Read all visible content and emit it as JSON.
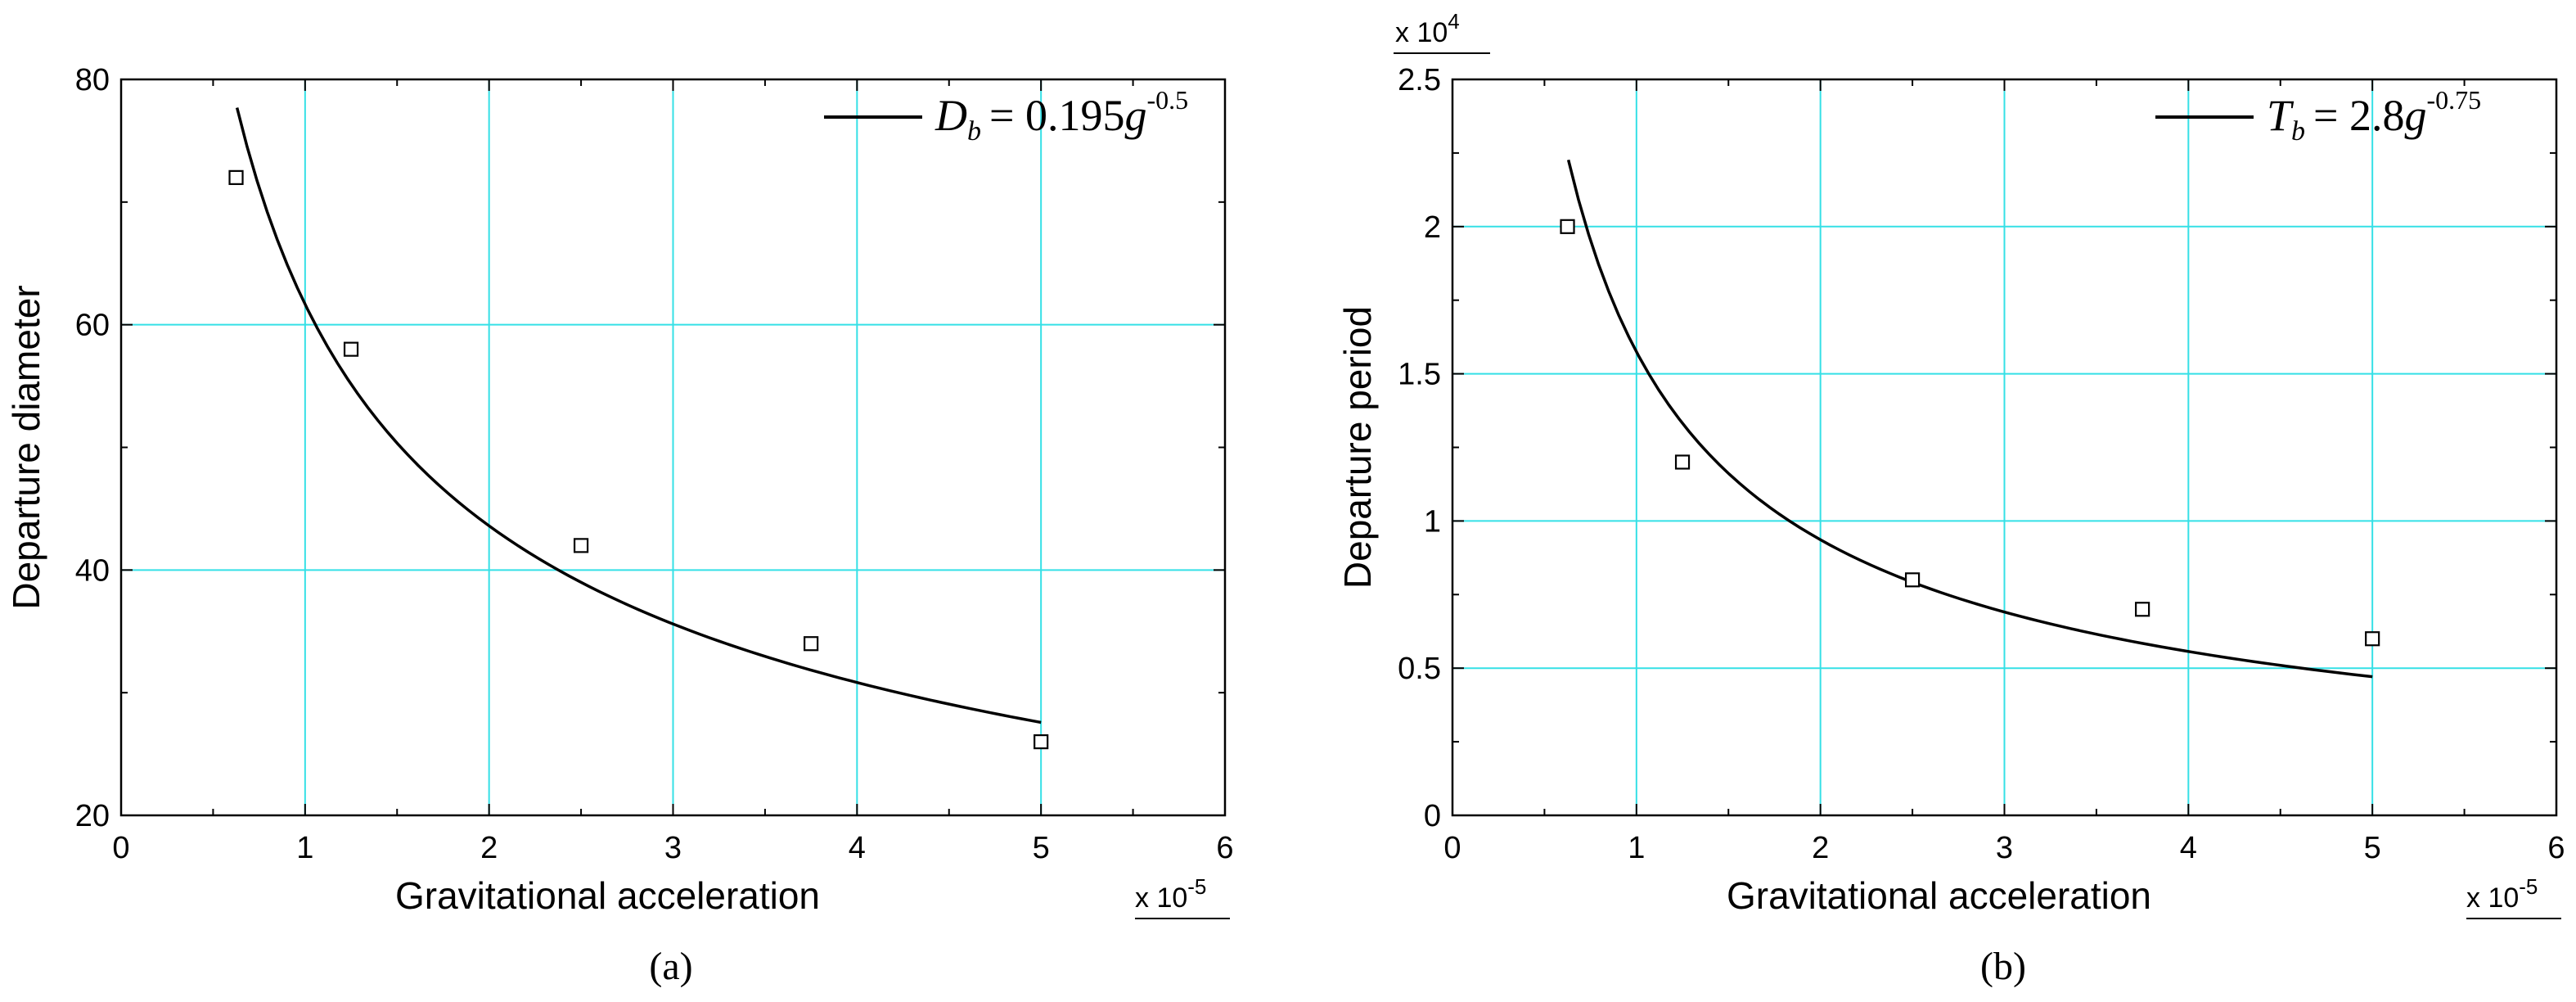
{
  "chart_data": [
    {
      "id": "a",
      "type": "scatter",
      "panel_label": "(a)",
      "title": "",
      "xlabel": "Gravitational acceleration",
      "ylabel": "Departure diameter",
      "x_multiplier": "x 10",
      "x_multiplier_exp": "-5",
      "y_multiplier": "",
      "y_multiplier_exp": "",
      "xlim": [
        0,
        6
      ],
      "ylim": [
        20,
        80
      ],
      "xticks": [
        0,
        1,
        2,
        3,
        4,
        5,
        6
      ],
      "yticks": [
        20,
        40,
        60,
        80
      ],
      "grid": true,
      "legend": {
        "placement": "top-right",
        "symbol": "D",
        "subscript": "b",
        "equals": "= 0.195",
        "base": "g",
        "exponent": "-0.5"
      },
      "fit_curve": {
        "coefficient": 0.195,
        "exponent": -0.5,
        "x_scale": 1e-05,
        "x_range": [
          0.63,
          5.0
        ]
      },
      "series": [
        {
          "name": "data",
          "x": [
            0.625,
            1.25,
            2.5,
            3.75,
            5.0
          ],
          "y": [
            72,
            58,
            42,
            34,
            26
          ]
        }
      ]
    },
    {
      "id": "b",
      "type": "scatter",
      "panel_label": "(b)",
      "title": "",
      "xlabel": "Gravitational acceleration",
      "ylabel": "Departure period",
      "x_multiplier": "x 10",
      "x_multiplier_exp": "-5",
      "y_multiplier": "x 10",
      "y_multiplier_exp": "4",
      "xlim": [
        0,
        6
      ],
      "ylim": [
        0,
        2.5
      ],
      "xticks": [
        0,
        1,
        2,
        3,
        4,
        5,
        6
      ],
      "yticks": [
        0,
        0.5,
        1,
        1.5,
        2,
        2.5
      ],
      "grid": true,
      "legend": {
        "placement": "top-right",
        "symbol": "T",
        "subscript": "b",
        "equals": "= 2.8",
        "base": "g",
        "exponent": "-0.75"
      },
      "fit_curve": {
        "coefficient": 2.8,
        "exponent": -0.75,
        "x_scale": 1e-05,
        "y_scale": 10000.0,
        "x_range": [
          0.63,
          5.0
        ]
      },
      "series": [
        {
          "name": "data",
          "x": [
            0.625,
            1.25,
            2.5,
            3.75,
            5.0
          ],
          "y": [
            2.0,
            1.2,
            0.8,
            0.7,
            0.6
          ]
        }
      ]
    }
  ]
}
